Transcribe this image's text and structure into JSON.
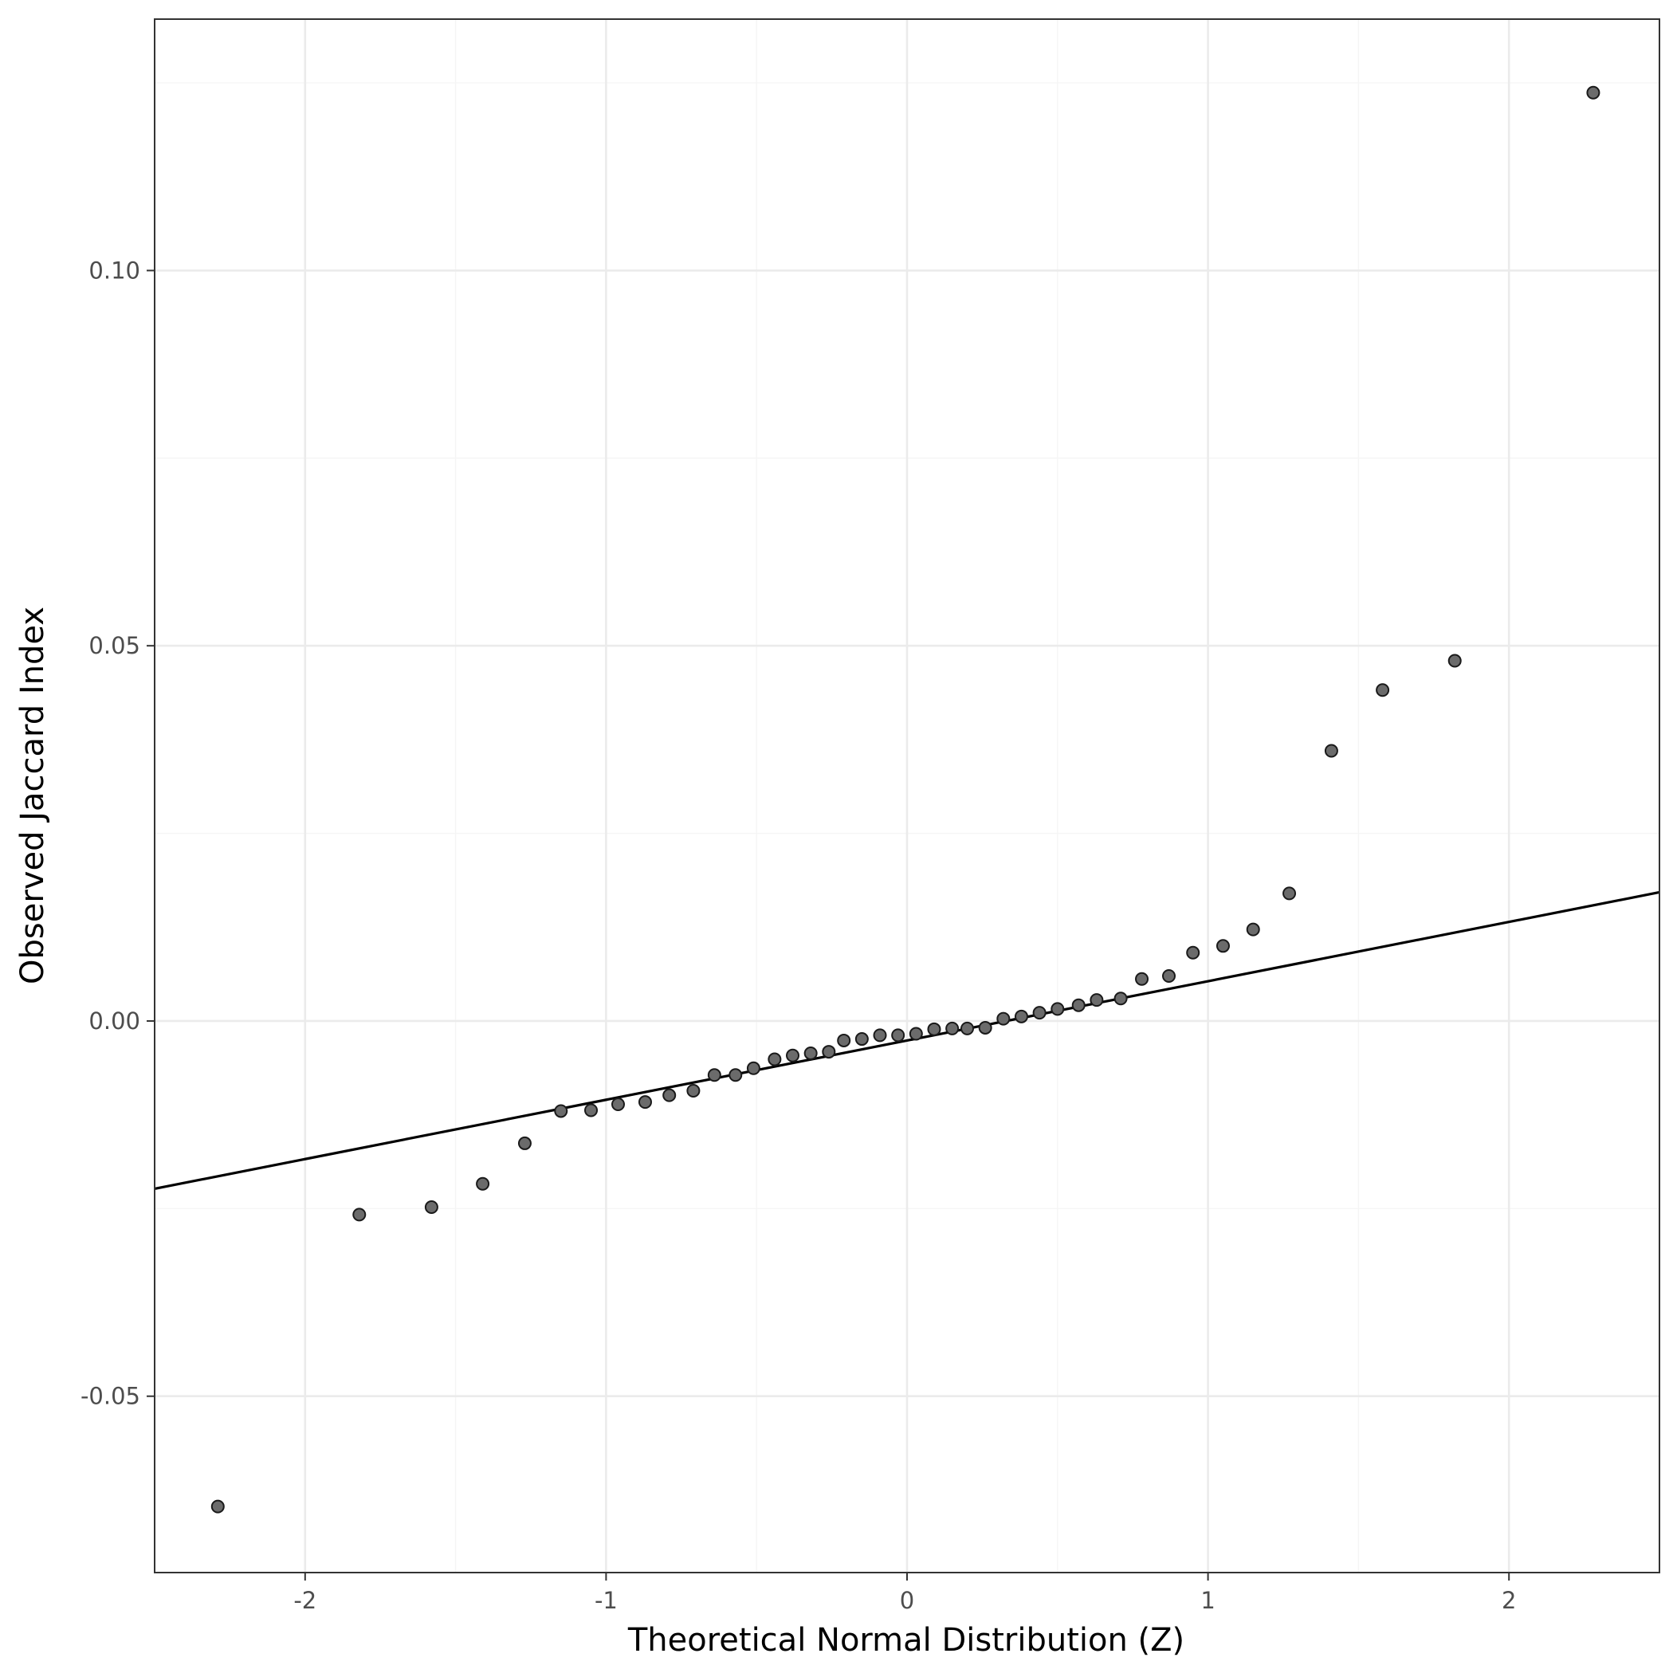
{
  "chart_data": {
    "type": "scatter",
    "title": "",
    "xlabel": "Theoretical Normal Distribution (Z)",
    "ylabel": "Observed Jaccard Index",
    "xlim": [
      -2.5,
      2.5
    ],
    "ylim": [
      -0.0735,
      0.1335
    ],
    "x_ticks": [
      -2,
      -1,
      0,
      1,
      2
    ],
    "x_tick_labels": [
      "-2",
      "-1",
      "0",
      "1",
      "2"
    ],
    "y_ticks": [
      -0.05,
      0.0,
      0.05,
      0.1
    ],
    "y_tick_labels": [
      "-0.05",
      "0.00",
      "0.05",
      "0.10"
    ],
    "grid": true,
    "theme": "bw",
    "colors": {
      "point_fill": "#6b6b6b",
      "point_stroke": "#1a1a1a",
      "line": "#000000",
      "grid_major": "#ebebeb",
      "grid_minor": "#f5f5f5",
      "panel_border": "#333333"
    },
    "reference_line": {
      "intercept": -0.0026,
      "slope": 0.0079
    },
    "series": [
      {
        "points": [
          {
            "x": -2.29,
            "y": -0.0647
          },
          {
            "x": -1.82,
            "y": -0.0258
          },
          {
            "x": -1.58,
            "y": -0.0248
          },
          {
            "x": -1.41,
            "y": -0.0217
          },
          {
            "x": -1.27,
            "y": -0.0163
          },
          {
            "x": -1.15,
            "y": -0.012
          },
          {
            "x": -1.05,
            "y": -0.0119
          },
          {
            "x": -0.96,
            "y": -0.0111
          },
          {
            "x": -0.87,
            "y": -0.0108
          },
          {
            "x": -0.79,
            "y": -0.0099
          },
          {
            "x": -0.71,
            "y": -0.0093
          },
          {
            "x": -0.64,
            "y": -0.0072
          },
          {
            "x": -0.57,
            "y": -0.0072
          },
          {
            "x": -0.51,
            "y": -0.0063
          },
          {
            "x": -0.44,
            "y": -0.0051
          },
          {
            "x": -0.38,
            "y": -0.0046
          },
          {
            "x": -0.32,
            "y": -0.0043
          },
          {
            "x": -0.26,
            "y": -0.0041
          },
          {
            "x": -0.21,
            "y": -0.0026
          },
          {
            "x": -0.15,
            "y": -0.0024
          },
          {
            "x": -0.09,
            "y": -0.0019
          },
          {
            "x": -0.03,
            "y": -0.0019
          },
          {
            "x": 0.03,
            "y": -0.0017
          },
          {
            "x": 0.09,
            "y": -0.0011
          },
          {
            "x": 0.15,
            "y": -0.001
          },
          {
            "x": 0.2,
            "y": -0.001
          },
          {
            "x": 0.26,
            "y": -0.0009
          },
          {
            "x": 0.32,
            "y": 0.0003
          },
          {
            "x": 0.38,
            "y": 0.0006
          },
          {
            "x": 0.44,
            "y": 0.0011
          },
          {
            "x": 0.5,
            "y": 0.0016
          },
          {
            "x": 0.57,
            "y": 0.0021
          },
          {
            "x": 0.63,
            "y": 0.0028
          },
          {
            "x": 0.71,
            "y": 0.003
          },
          {
            "x": 0.78,
            "y": 0.0056
          },
          {
            "x": 0.87,
            "y": 0.006
          },
          {
            "x": 0.95,
            "y": 0.0091
          },
          {
            "x": 1.05,
            "y": 0.01
          },
          {
            "x": 1.15,
            "y": 0.0122
          },
          {
            "x": 1.27,
            "y": 0.017
          },
          {
            "x": 1.41,
            "y": 0.036
          },
          {
            "x": 1.58,
            "y": 0.0441
          },
          {
            "x": 1.82,
            "y": 0.048
          },
          {
            "x": 2.28,
            "y": 0.1237
          }
        ]
      }
    ]
  }
}
